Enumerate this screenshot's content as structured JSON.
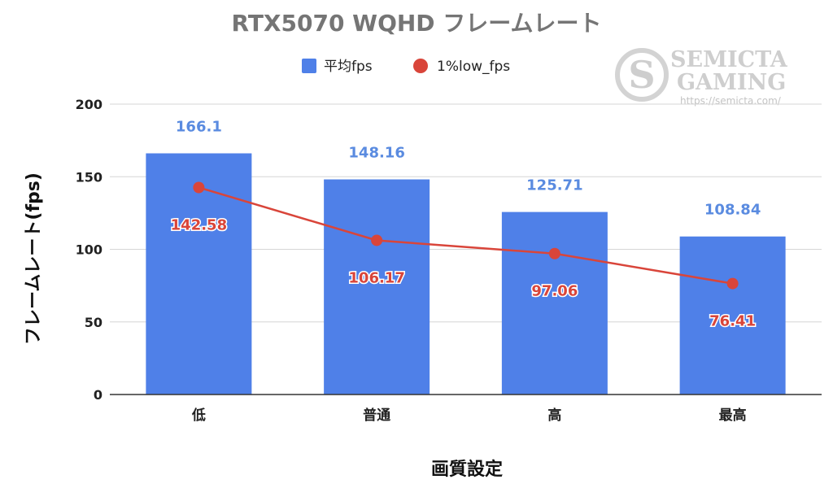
{
  "chart_data": {
    "type": "bar",
    "title": "RTX5070 WQHD フレームレート",
    "xlabel": "画質設定",
    "ylabel": "フレームレート(fps)",
    "categories": [
      "低",
      "普通",
      "高",
      "最高"
    ],
    "ylim": [
      0,
      200
    ],
    "yticks": [
      "0",
      "50",
      "100",
      "150",
      "200"
    ],
    "grid": true,
    "legend_position": "top",
    "series": [
      {
        "name": "平均fps",
        "kind": "bar",
        "color": "#4f80e8",
        "label_color": "#5a8be0",
        "values": [
          166.1,
          148.16,
          125.71,
          108.84
        ],
        "labels": [
          "166.1",
          "148.16",
          "125.71",
          "108.84"
        ]
      },
      {
        "name": "1%low_fps",
        "kind": "line",
        "color": "#d9453a",
        "label_color": "#d9453a",
        "values": [
          142.58,
          106.17,
          97.06,
          76.41
        ],
        "labels": [
          "142.58",
          "106.17",
          "97.06",
          "76.41"
        ]
      }
    ]
  },
  "watermark": {
    "line1": "SEMICTA",
    "line2": "GAMING",
    "url": "https://semicta.com/"
  }
}
